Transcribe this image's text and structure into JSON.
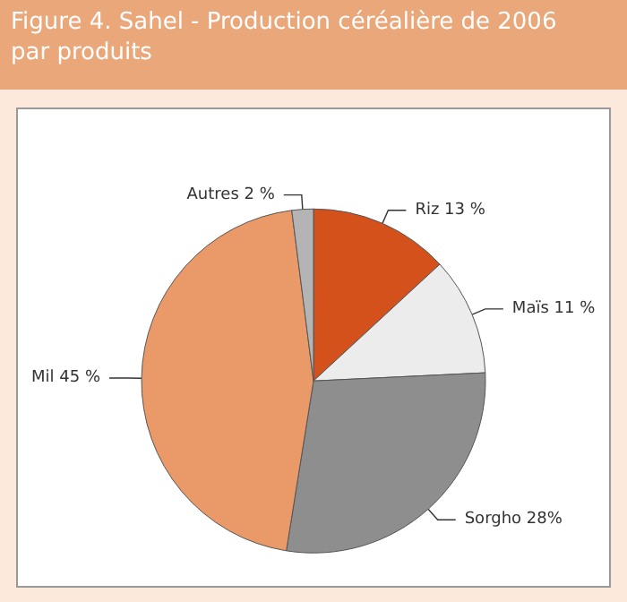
{
  "chart_data": {
    "type": "pie",
    "title": "Figure 4. Sahel -  Production céréalière de 2006 par produits",
    "categories": [
      "Riz",
      "Maïs",
      "Sorgho",
      "Mil",
      "Autres"
    ],
    "values": [
      13,
      11,
      28,
      45,
      2
    ],
    "value_labels": [
      "13 %",
      "11 %",
      "28%",
      "45 %",
      "2 %"
    ],
    "colors": [
      "#d4511c",
      "#ececec",
      "#8e8e8e",
      "#e99a68",
      "#b4b4b4"
    ],
    "legend": false
  }
}
